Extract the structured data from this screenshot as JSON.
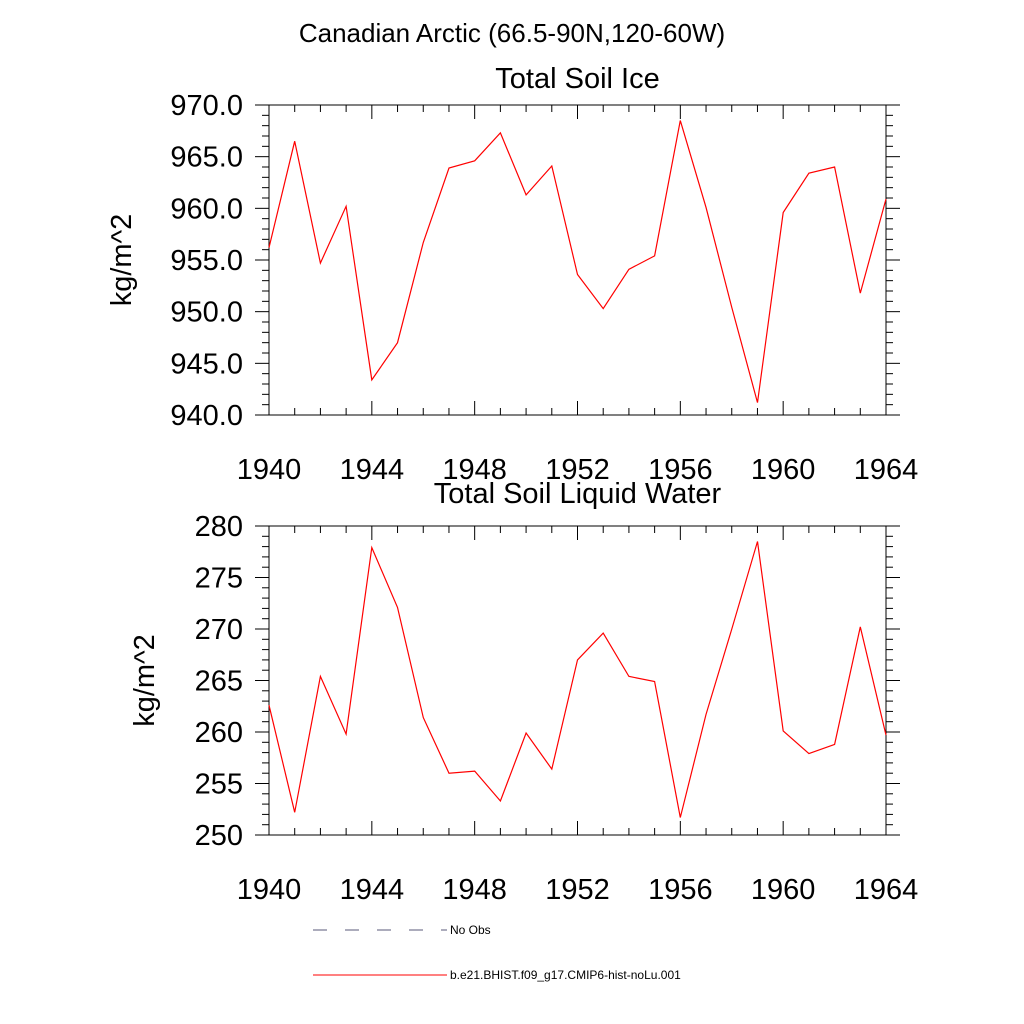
{
  "figure_title": "Canadian Arctic (66.5-90N,120-60W)",
  "chart_data": [
    {
      "type": "line",
      "title": "Total Soil Ice",
      "ylabel": "kg/m^2",
      "xlabel": "",
      "xlim": [
        1940,
        1964
      ],
      "ylim": [
        940,
        970
      ],
      "x_ticks": [
        1940,
        1944,
        1948,
        1952,
        1956,
        1960,
        1964
      ],
      "x_tick_labels": [
        "1940",
        "1944",
        "1948",
        "1952",
        "1956",
        "1960",
        "1964"
      ],
      "y_ticks": [
        940,
        945,
        950,
        955,
        960,
        965,
        970
      ],
      "y_tick_labels": [
        "940.0",
        "945.0",
        "950.0",
        "955.0",
        "960.0",
        "965.0",
        "970.0"
      ],
      "grid": false,
      "x": [
        1940,
        1941,
        1942,
        1943,
        1944,
        1945,
        1946,
        1947,
        1948,
        1949,
        1950,
        1951,
        1952,
        1953,
        1954,
        1955,
        1956,
        1957,
        1958,
        1959,
        1960,
        1961,
        1962,
        1963,
        1964
      ],
      "series": [
        {
          "name": "b.e21.BHIST.f09_g17.CMIP6-hist-noLu.001",
          "color": "#ff0000",
          "values": [
            956.2,
            966.5,
            954.7,
            960.2,
            943.4,
            947.0,
            956.7,
            963.9,
            964.6,
            967.3,
            961.3,
            964.1,
            953.6,
            950.3,
            954.1,
            955.4,
            968.5,
            960.1,
            950.4,
            941.2,
            959.6,
            963.4,
            964.0,
            951.8,
            960.9
          ]
        }
      ]
    },
    {
      "type": "line",
      "title": "Total Soil Liquid Water",
      "ylabel": "kg/m^2",
      "xlabel": "",
      "xlim": [
        1940,
        1964
      ],
      "ylim": [
        250,
        280
      ],
      "x_ticks": [
        1940,
        1944,
        1948,
        1952,
        1956,
        1960,
        1964
      ],
      "x_tick_labels": [
        "1940",
        "1944",
        "1948",
        "1952",
        "1956",
        "1960",
        "1964"
      ],
      "y_ticks": [
        250,
        255,
        260,
        265,
        270,
        275,
        280
      ],
      "y_tick_labels": [
        "250",
        "255",
        "260",
        "265",
        "270",
        "275",
        "280"
      ],
      "grid": false,
      "x": [
        1940,
        1941,
        1942,
        1943,
        1944,
        1945,
        1946,
        1947,
        1948,
        1949,
        1950,
        1951,
        1952,
        1953,
        1954,
        1955,
        1956,
        1957,
        1958,
        1959,
        1960,
        1961,
        1962,
        1963,
        1964
      ],
      "series": [
        {
          "name": "b.e21.BHIST.f09_g17.CMIP6-hist-noLu.001",
          "color": "#ff0000",
          "values": [
            262.6,
            252.2,
            265.4,
            259.8,
            277.9,
            272.1,
            261.4,
            256.0,
            256.2,
            253.3,
            259.9,
            256.4,
            267.0,
            269.6,
            265.4,
            264.9,
            251.7,
            261.7,
            270.0,
            278.5,
            260.1,
            257.9,
            258.8,
            270.2,
            259.7
          ]
        }
      ]
    }
  ],
  "legend": [
    {
      "label": "No Obs",
      "style": "dashed",
      "color": "#5a5a78"
    },
    {
      "label": "b.e21.BHIST.f09_g17.CMIP6-hist-noLu.001",
      "style": "solid",
      "color": "#ff0000"
    }
  ]
}
